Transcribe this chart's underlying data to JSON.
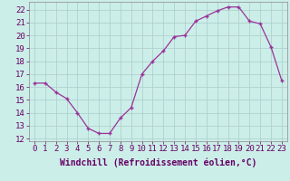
{
  "x": [
    0,
    1,
    2,
    3,
    4,
    5,
    6,
    7,
    8,
    9,
    10,
    11,
    12,
    13,
    14,
    15,
    16,
    17,
    18,
    19,
    20,
    21,
    22,
    23
  ],
  "y": [
    16.3,
    16.3,
    15.6,
    15.1,
    14.0,
    12.8,
    12.4,
    12.4,
    13.6,
    14.4,
    17.0,
    18.0,
    18.8,
    19.9,
    20.0,
    21.1,
    21.5,
    21.9,
    22.2,
    22.2,
    21.1,
    20.9,
    19.1,
    16.5
  ],
  "xlim": [
    -0.5,
    23.5
  ],
  "ylim": [
    11.8,
    22.6
  ],
  "yticks": [
    12,
    13,
    14,
    15,
    16,
    17,
    18,
    19,
    20,
    21,
    22
  ],
  "xticks": [
    0,
    1,
    2,
    3,
    4,
    5,
    6,
    7,
    8,
    9,
    10,
    11,
    12,
    13,
    14,
    15,
    16,
    17,
    18,
    19,
    20,
    21,
    22,
    23
  ],
  "line_color": "#993399",
  "marker_color": "#993399",
  "bg_color": "#cceee8",
  "grid_color": "#aacccc",
  "xlabel": "Windchill (Refroidissement éolien,°C)",
  "xlabel_fontsize": 7,
  "tick_fontsize": 6.5,
  "title": ""
}
